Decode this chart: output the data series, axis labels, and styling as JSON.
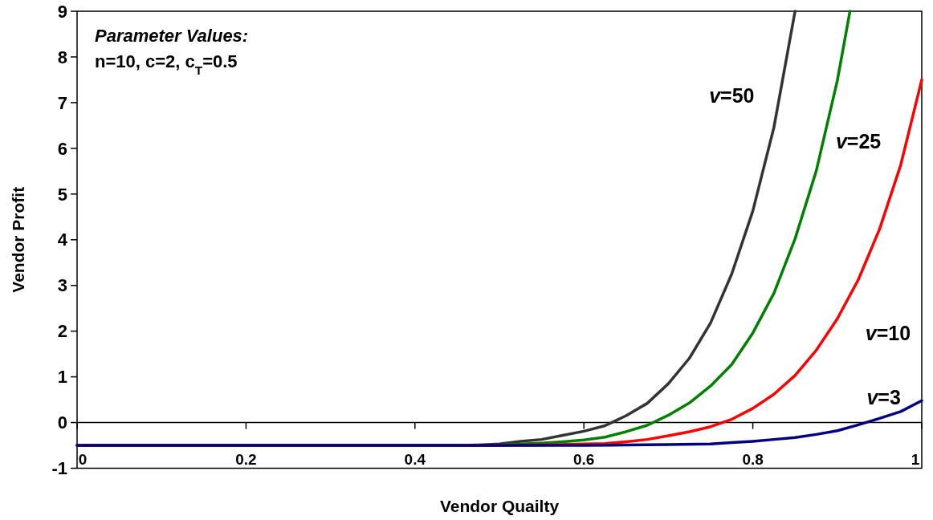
{
  "chart_data": {
    "type": "line",
    "xlabel": "Vendor Quailty",
    "ylabel": "Vendor Profit",
    "xlim": [
      0,
      1
    ],
    "xticks": [
      0,
      0.2,
      0.4,
      0.6,
      0.8,
      1
    ],
    "ylim": [
      -1,
      9
    ],
    "yticks": [
      -1,
      0,
      1,
      2,
      3,
      4,
      5,
      6,
      7,
      8,
      9
    ],
    "marker": "none",
    "line_style": "solid",
    "annotations": [
      "Parameter Values:",
      "n=10, c=2, c$_{T}$=0.5"
    ],
    "series": [
      {
        "name": "v=50",
        "color": "#333333",
        "x": [
          0,
          0.45,
          0.475,
          0.5,
          0.525,
          0.55,
          0.575,
          0.6,
          0.625,
          0.65,
          0.675,
          0.7,
          0.725,
          0.75,
          0.775,
          0.8,
          0.825,
          0.85
        ],
        "values": [
          -0.5,
          -0.5,
          -0.49,
          -0.47,
          -0.41,
          -0.37,
          -0.28,
          -0.19,
          -0.07,
          0.15,
          0.42,
          0.85,
          1.41,
          2.18,
          3.25,
          4.63,
          6.46,
          9.0
        ]
      },
      {
        "name": "v=25",
        "color": "#008000",
        "x": [
          0,
          0.475,
          0.5,
          0.525,
          0.55,
          0.575,
          0.6,
          0.625,
          0.65,
          0.675,
          0.7,
          0.725,
          0.75,
          0.775,
          0.8,
          0.825,
          0.85,
          0.875,
          0.9,
          0.915
        ],
        "values": [
          -0.5,
          -0.5,
          -0.49,
          -0.47,
          -0.45,
          -0.42,
          -0.38,
          -0.32,
          -0.2,
          -0.06,
          0.16,
          0.43,
          0.8,
          1.27,
          1.96,
          2.83,
          4.02,
          5.5,
          7.48,
          9.0
        ]
      },
      {
        "name": "v=10",
        "color": "#ff0000",
        "x": [
          0,
          0.5,
          0.55,
          0.6,
          0.625,
          0.65,
          0.675,
          0.7,
          0.725,
          0.75,
          0.775,
          0.8,
          0.825,
          0.85,
          0.875,
          0.9,
          0.925,
          0.95,
          0.975,
          1
        ],
        "values": [
          -0.5,
          -0.5,
          -0.49,
          -0.47,
          -0.46,
          -0.42,
          -0.37,
          -0.29,
          -0.2,
          -0.09,
          0.07,
          0.31,
          0.62,
          1.03,
          1.58,
          2.27,
          3.13,
          4.23,
          5.63,
          7.5
        ]
      },
      {
        "name": "v=3",
        "color": "#000080",
        "x": [
          0,
          0.6,
          0.65,
          0.7,
          0.75,
          0.775,
          0.8,
          0.825,
          0.85,
          0.875,
          0.9,
          0.925,
          0.95,
          0.975,
          1
        ],
        "values": [
          -0.5,
          -0.5,
          -0.49,
          -0.48,
          -0.47,
          -0.44,
          -0.41,
          -0.37,
          -0.33,
          -0.26,
          -0.18,
          -0.05,
          0.09,
          0.24,
          0.48
        ]
      }
    ]
  }
}
